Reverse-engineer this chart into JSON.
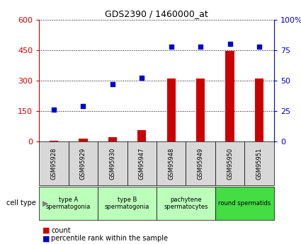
{
  "title": "GDS2390 / 1460000_at",
  "samples": [
    "GSM95928",
    "GSM95929",
    "GSM95930",
    "GSM95947",
    "GSM95948",
    "GSM95949",
    "GSM95950",
    "GSM95951"
  ],
  "counts": [
    5,
    15,
    20,
    55,
    310,
    310,
    445,
    310
  ],
  "percentiles": [
    26,
    29,
    47,
    52,
    78,
    78,
    80,
    78
  ],
  "ylim_left": [
    0,
    600
  ],
  "ylim_right": [
    0,
    100
  ],
  "yticks_left": [
    0,
    150,
    300,
    450,
    600
  ],
  "yticks_right": [
    0,
    25,
    50,
    75,
    100
  ],
  "ytick_labels_right": [
    "0",
    "25",
    "50",
    "75",
    "100%"
  ],
  "bar_color": "#cc0000",
  "dot_color": "#0000cc",
  "cell_groups": [
    {
      "label": "type A\nspermatogonia",
      "start": 0,
      "end": 2,
      "color": "#bbffbb"
    },
    {
      "label": "type B\nspermatogonia",
      "start": 2,
      "end": 4,
      "color": "#bbffbb"
    },
    {
      "label": "pachytene\nspermatocytes",
      "start": 4,
      "end": 6,
      "color": "#bbffbb"
    },
    {
      "label": "round spermatids",
      "start": 6,
      "end": 8,
      "color": "#44dd44"
    }
  ],
  "legend_count_label": "count",
  "legend_pct_label": "percentile rank within the sample",
  "cell_type_label": "cell type",
  "tick_color_left": "#cc0000",
  "tick_color_right": "#0000cc",
  "sample_box_color": "#d8d8d8"
}
